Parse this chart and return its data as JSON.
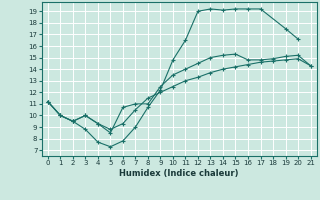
{
  "xlabel": "Humidex (Indice chaleur)",
  "bg_color": "#cce8e0",
  "line_color": "#1a7068",
  "grid_color": "#b0d0c8",
  "xlim": [
    -0.5,
    21.5
  ],
  "ylim": [
    6.5,
    19.8
  ],
  "xticks": [
    0,
    1,
    2,
    3,
    4,
    5,
    6,
    7,
    8,
    9,
    10,
    11,
    12,
    13,
    14,
    15,
    16,
    17,
    18,
    19,
    20,
    21
  ],
  "yticks": [
    7,
    8,
    9,
    10,
    11,
    12,
    13,
    14,
    15,
    16,
    17,
    18,
    19
  ],
  "line1_x": [
    0,
    1,
    2,
    3,
    4,
    5,
    6,
    7,
    8,
    9,
    10,
    11,
    12,
    13,
    14,
    15,
    16,
    17,
    19,
    20
  ],
  "line1_y": [
    11.2,
    10.0,
    9.5,
    8.8,
    7.7,
    7.3,
    7.8,
    9.0,
    10.7,
    12.2,
    14.8,
    16.5,
    19.0,
    19.2,
    19.1,
    19.2,
    19.2,
    19.2,
    17.5,
    16.6
  ],
  "line2_x": [
    0,
    1,
    2,
    3,
    4,
    5,
    6,
    7,
    8,
    9,
    10,
    11,
    12,
    13,
    14,
    15,
    16,
    17,
    18,
    19,
    20,
    21
  ],
  "line2_y": [
    11.2,
    10.0,
    9.5,
    10.0,
    9.3,
    8.5,
    10.7,
    11.0,
    11.0,
    12.5,
    13.5,
    14.0,
    14.5,
    15.0,
    15.2,
    15.3,
    14.8,
    14.8,
    14.9,
    15.1,
    15.2,
    14.3
  ],
  "line3_x": [
    0,
    1,
    2,
    3,
    4,
    5,
    6,
    7,
    8,
    9,
    10,
    11,
    12,
    13,
    14,
    15,
    16,
    17,
    18,
    19,
    20,
    21
  ],
  "line3_y": [
    11.2,
    10.0,
    9.5,
    10.0,
    9.3,
    8.8,
    9.3,
    10.5,
    11.5,
    12.0,
    12.5,
    13.0,
    13.3,
    13.7,
    14.0,
    14.2,
    14.4,
    14.6,
    14.7,
    14.8,
    14.9,
    14.3
  ]
}
